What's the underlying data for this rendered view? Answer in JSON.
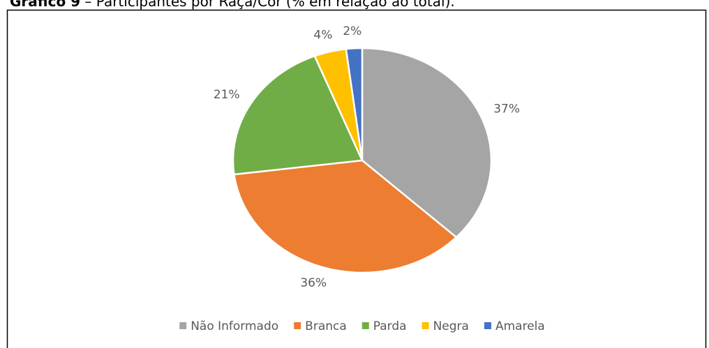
{
  "caption": {
    "label": "Gráfico 9",
    "text": " – Participantes por Raça/Cor (% em relação ao total)."
  },
  "chart_data": {
    "type": "pie",
    "categories": [
      "Não Informado",
      "Branca",
      "Parda",
      "Negra",
      "Amarela"
    ],
    "values": [
      37,
      36,
      21,
      4,
      2
    ],
    "value_labels": [
      "37%",
      "36%",
      "21%",
      "4%",
      "2%"
    ],
    "colors": [
      "#a5a5a5",
      "#ed7d31",
      "#70ad47",
      "#ffc000",
      "#4472c4"
    ],
    "legend": "bottom"
  }
}
